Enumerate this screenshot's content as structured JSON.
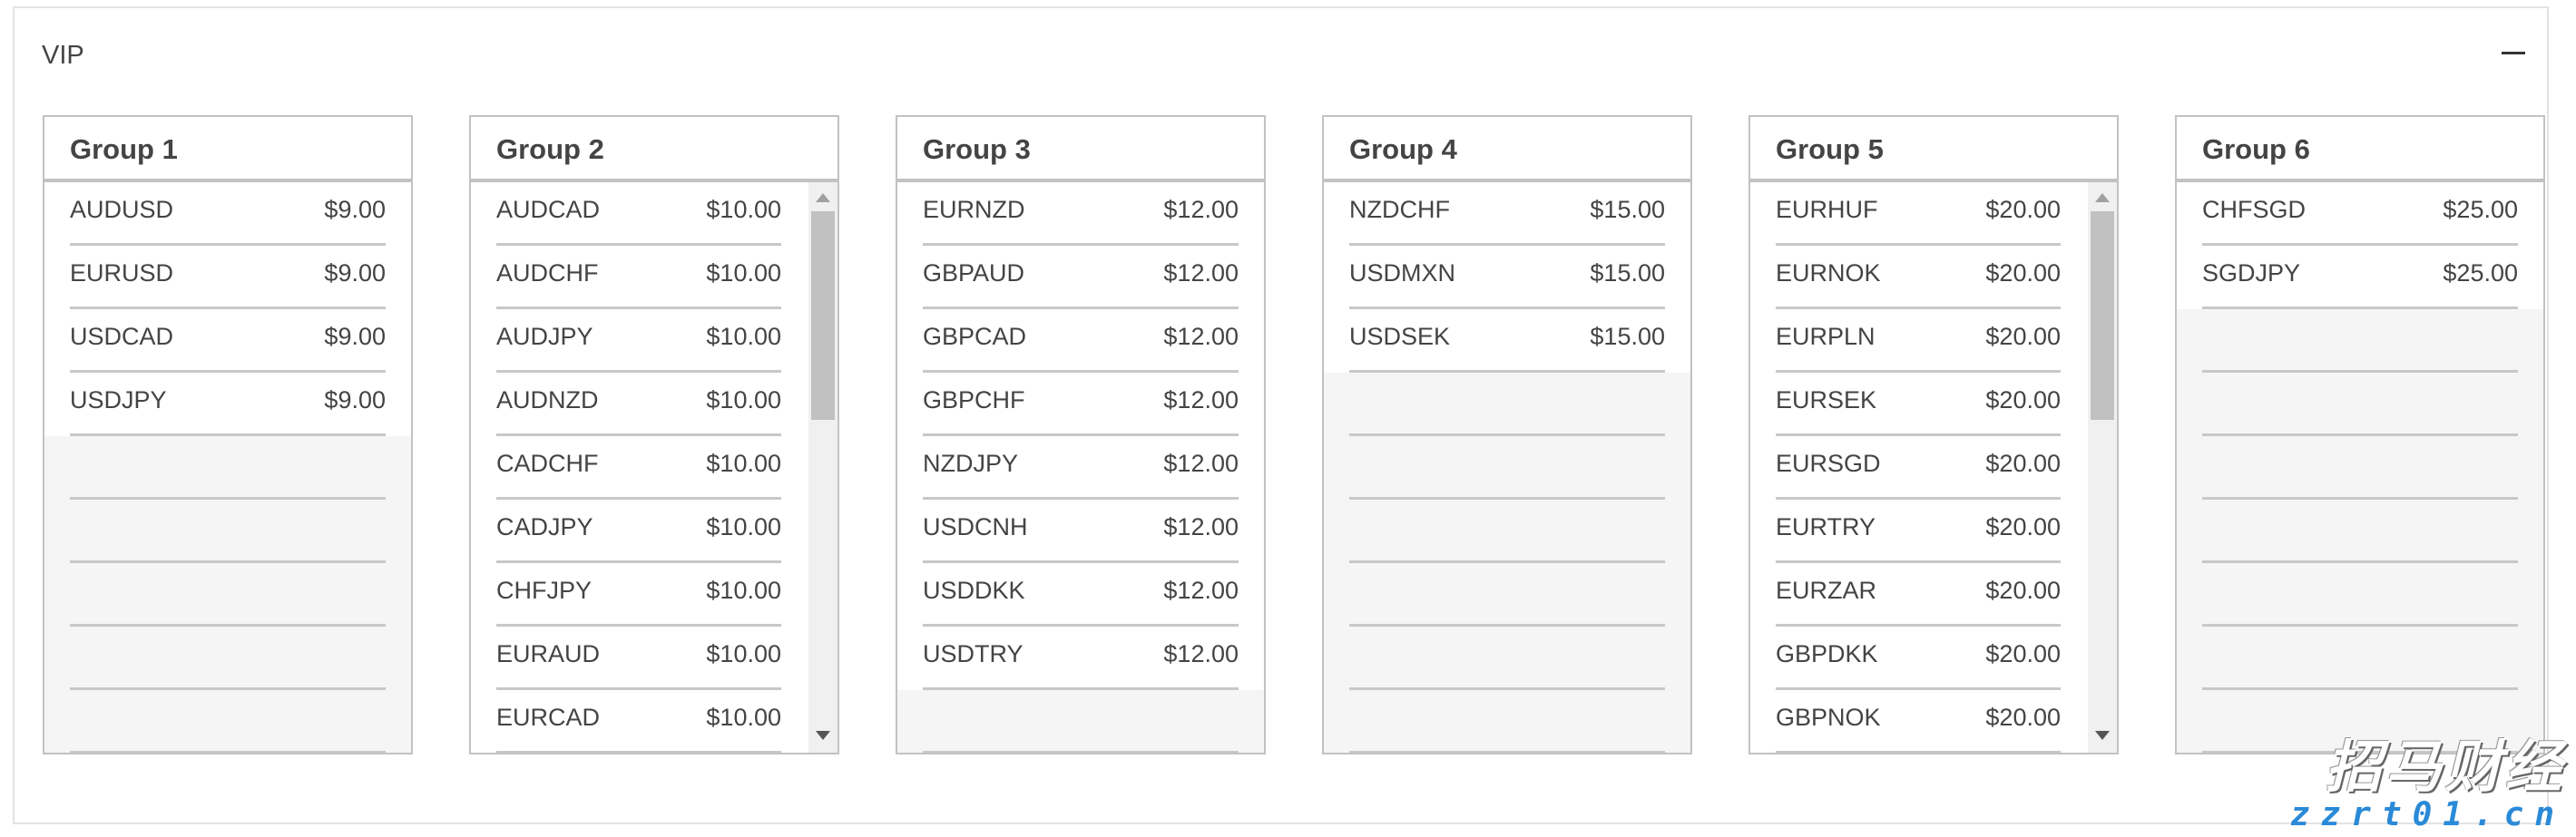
{
  "panel": {
    "title": "VIP",
    "collapse_icon": "minus-icon"
  },
  "groups": [
    {
      "title": "Group 1",
      "scrollable": false,
      "items": [
        {
          "symbol": "AUDUSD",
          "price": "$9.00"
        },
        {
          "symbol": "EURUSD",
          "price": "$9.00"
        },
        {
          "symbol": "USDCAD",
          "price": "$9.00"
        },
        {
          "symbol": "USDJPY",
          "price": "$9.00"
        }
      ]
    },
    {
      "title": "Group 2",
      "scrollable": true,
      "items": [
        {
          "symbol": "AUDCAD",
          "price": "$10.00"
        },
        {
          "symbol": "AUDCHF",
          "price": "$10.00"
        },
        {
          "symbol": "AUDJPY",
          "price": "$10.00"
        },
        {
          "symbol": "AUDNZD",
          "price": "$10.00"
        },
        {
          "symbol": "CADCHF",
          "price": "$10.00"
        },
        {
          "symbol": "CADJPY",
          "price": "$10.00"
        },
        {
          "symbol": "CHFJPY",
          "price": "$10.00"
        },
        {
          "symbol": "EURAUD",
          "price": "$10.00"
        },
        {
          "symbol": "EURCAD",
          "price": "$10.00"
        }
      ]
    },
    {
      "title": "Group 3",
      "scrollable": false,
      "items": [
        {
          "symbol": "EURNZD",
          "price": "$12.00"
        },
        {
          "symbol": "GBPAUD",
          "price": "$12.00"
        },
        {
          "symbol": "GBPCAD",
          "price": "$12.00"
        },
        {
          "symbol": "GBPCHF",
          "price": "$12.00"
        },
        {
          "symbol": "NZDJPY",
          "price": "$12.00"
        },
        {
          "symbol": "USDCNH",
          "price": "$12.00"
        },
        {
          "symbol": "USDDKK",
          "price": "$12.00"
        },
        {
          "symbol": "USDTRY",
          "price": "$12.00"
        }
      ]
    },
    {
      "title": "Group 4",
      "scrollable": false,
      "items": [
        {
          "symbol": "NZDCHF",
          "price": "$15.00"
        },
        {
          "symbol": "USDMXN",
          "price": "$15.00"
        },
        {
          "symbol": "USDSEK",
          "price": "$15.00"
        }
      ]
    },
    {
      "title": "Group 5",
      "scrollable": true,
      "items": [
        {
          "symbol": "EURHUF",
          "price": "$20.00"
        },
        {
          "symbol": "EURNOK",
          "price": "$20.00"
        },
        {
          "symbol": "EURPLN",
          "price": "$20.00"
        },
        {
          "symbol": "EURSEK",
          "price": "$20.00"
        },
        {
          "symbol": "EURSGD",
          "price": "$20.00"
        },
        {
          "symbol": "EURTRY",
          "price": "$20.00"
        },
        {
          "symbol": "EURZAR",
          "price": "$20.00"
        },
        {
          "symbol": "GBPDKK",
          "price": "$20.00"
        },
        {
          "symbol": "GBPNOK",
          "price": "$20.00"
        }
      ]
    },
    {
      "title": "Group 6",
      "scrollable": false,
      "items": [
        {
          "symbol": "CHFSGD",
          "price": "$25.00"
        },
        {
          "symbol": "SGDJPY",
          "price": "$25.00"
        }
      ]
    }
  ],
  "watermark": {
    "line1": "招马财经",
    "line2": "zzrt01.cn"
  }
}
